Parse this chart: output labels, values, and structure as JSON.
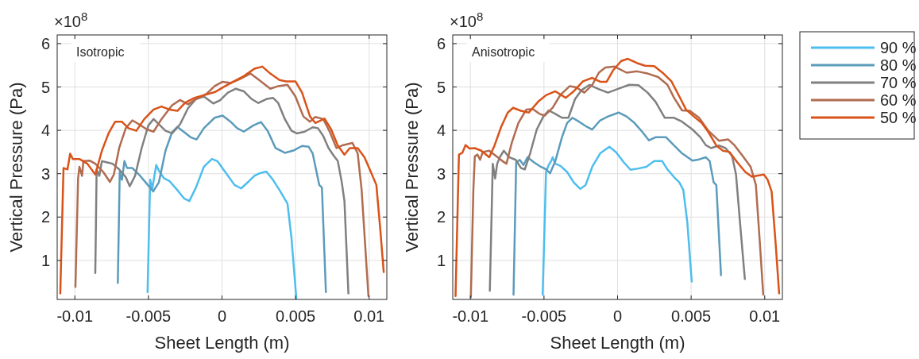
{
  "chart_data": [
    {
      "type": "line",
      "xlabel": "Sheet Length (m)",
      "ylabel": "Vertical Pressure (Pa)",
      "annotations": [
        "×10$^{8}$",
        "Isotropic"
      ],
      "xlim": [
        -0.0112,
        0.0112
      ],
      "ylim": [
        0.1,
        6.2
      ],
      "xticks": [
        -0.01,
        -0.005,
        0,
        0.005,
        0.01
      ],
      "yticks": [
        1,
        2,
        3,
        4,
        5,
        6
      ],
      "grid": true,
      "legend": false,
      "series": [
        {
          "color": "#4dbeee",
          "x": [
            -0.00506,
            -0.00488,
            -0.00474,
            -0.00447,
            -0.00429,
            -0.00393,
            -0.00357,
            -0.00303,
            -0.00258,
            -0.00222,
            -0.00177,
            -0.00123,
            -0.00068,
            -0.00032,
            0.00022,
            0.00085,
            0.0013,
            0.00184,
            0.0022,
            0.00256,
            0.00301,
            0.00346,
            0.00391,
            0.00445,
            0.00472,
            0.00505
          ],
          "values": [
            0.27,
            2.86,
            2.65,
            3.2,
            3.07,
            2.89,
            2.83,
            2.62,
            2.43,
            2.37,
            2.68,
            3.16,
            3.34,
            3.29,
            3.04,
            2.74,
            2.66,
            2.83,
            2.95,
            3.01,
            3.05,
            2.86,
            2.62,
            2.31,
            1.52,
            0.12
          ]
        },
        {
          "color": "#5b9bbb",
          "x": [
            -0.00708,
            -0.00695,
            -0.0068,
            -0.00663,
            -0.00645,
            -0.00609,
            -0.00564,
            -0.00519,
            -0.00468,
            -0.00429,
            -0.00384,
            -0.00339,
            -0.00303,
            -0.00258,
            -0.00213,
            -0.00173,
            -0.00123,
            -0.0005,
            4e-05,
            0.00058,
            0.00103,
            0.00148,
            0.00211,
            0.00265,
            0.0031,
            0.00364,
            0.00427,
            0.0049,
            0.00544,
            0.00589,
            0.00616,
            0.00661,
            0.00679,
            0.00706
          ],
          "values": [
            0.48,
            3.04,
            2.86,
            3.29,
            3.13,
            3.13,
            2.98,
            2.8,
            2.59,
            2.8,
            3.53,
            3.96,
            4.08,
            3.96,
            3.84,
            3.79,
            4.05,
            4.29,
            4.34,
            4.2,
            4.05,
            3.97,
            4.11,
            4.19,
            3.99,
            3.59,
            3.48,
            3.54,
            3.64,
            3.62,
            3.47,
            2.74,
            2.68,
            0.27
          ]
        },
        {
          "color": "#808080",
          "x": [
            -0.00861,
            -0.00852,
            -0.00834,
            -0.00816,
            -0.0078,
            -0.00744,
            -0.00699,
            -0.00654,
            -0.00627,
            -0.00591,
            -0.00546,
            -0.00501,
            -0.00465,
            -0.00429,
            -0.00384,
            -0.00339,
            -0.00285,
            -0.00231,
            -0.00177,
            -0.00123,
            -0.00059,
            -0.00014,
            0.0004,
            0.00094,
            0.00148,
            0.00202,
            0.00247,
            0.00301,
            0.00346,
            0.00382,
            0.00427,
            0.00472,
            0.00508,
            0.00562,
            0.00616,
            0.00652,
            0.00688,
            0.00724,
            0.0076,
            0.00787,
            0.00814,
            0.00832,
            0.00859
          ],
          "values": [
            0.71,
            3.1,
            2.95,
            3.29,
            3.26,
            3.23,
            3.1,
            2.92,
            2.71,
            2.95,
            3.59,
            4.11,
            4.26,
            4.14,
            3.99,
            3.93,
            4.14,
            4.51,
            4.72,
            4.78,
            4.62,
            4.69,
            4.87,
            4.96,
            4.9,
            4.72,
            4.63,
            4.72,
            4.75,
            4.63,
            4.26,
            3.99,
            3.93,
            3.97,
            4.07,
            4.05,
            3.87,
            3.59,
            3.41,
            3.29,
            2.8,
            2.37,
            0.24
          ]
        },
        {
          "color": "#b06c50",
          "x": [
            -0.00996,
            -0.00978,
            -0.00969,
            -0.00951,
            -0.00942,
            -0.00897,
            -0.00861,
            -0.00807,
            -0.00762,
            -0.00735,
            -0.00699,
            -0.00654,
            -0.00609,
            -0.00564,
            -0.0051,
            -0.00465,
            -0.00411,
            -0.00339,
            -0.00285,
            -0.00231,
            -0.00177,
            -0.00105,
            -0.0005,
            4e-05,
            0.00058,
            0.00121,
            0.00193,
            0.00256,
            0.00328,
            0.00382,
            0.00445,
            0.00499,
            0.00553,
            0.00598,
            0.00634,
            0.00688,
            0.00733,
            0.00778,
            0.00823,
            0.00886,
            0.00922,
            0.00949,
            0.00995
          ],
          "values": [
            0.39,
            2.89,
            3.16,
            2.95,
            3.29,
            3.3,
            3.23,
            3.04,
            2.81,
            2.98,
            3.59,
            4.05,
            4.23,
            4.14,
            4.02,
            3.97,
            4.26,
            4.58,
            4.7,
            4.6,
            4.72,
            4.84,
            5.02,
            5.12,
            5.09,
            5.18,
            5.31,
            5.15,
            4.96,
            5.02,
            5.05,
            4.78,
            4.32,
            4.2,
            4.31,
            4.26,
            3.96,
            3.59,
            3.66,
            3.71,
            3.47,
            2.62,
            0.18
          ]
        },
        {
          "color": "#d95319",
          "x": [
            -0.01099,
            -0.01077,
            -0.0105,
            -0.01032,
            -0.01014,
            -0.00969,
            -0.00915,
            -0.00861,
            -0.00816,
            -0.00771,
            -0.00726,
            -0.00681,
            -0.00636,
            -0.00582,
            -0.00528,
            -0.00465,
            -0.00411,
            -0.00357,
            -0.00303,
            -0.00249,
            -0.00186,
            -0.00123,
            -0.0005,
            0.00022,
            0.00076,
            0.00148,
            0.0022,
            0.00274,
            0.00328,
            0.00391,
            0.00436,
            0.00499,
            0.00544,
            0.00598,
            0.00634,
            0.00697,
            0.00742,
            0.00787,
            0.00832,
            0.00868,
            0.00922,
            0.00968,
            0.01004,
            0.01049,
            0.01076,
            0.01099
          ],
          "values": [
            0.24,
            3.13,
            3.1,
            3.46,
            3.34,
            3.34,
            3.23,
            2.98,
            3.53,
            3.93,
            4.2,
            4.2,
            4.05,
            3.99,
            4.26,
            4.48,
            4.55,
            4.48,
            4.45,
            4.64,
            4.75,
            4.81,
            4.88,
            5.02,
            5.12,
            5.25,
            5.42,
            5.47,
            5.31,
            5.16,
            5.13,
            5.13,
            4.87,
            4.32,
            4.17,
            4.27,
            4.02,
            3.65,
            3.44,
            3.59,
            3.59,
            3.38,
            3.1,
            2.74,
            1.7,
            0.73
          ]
        }
      ]
    },
    {
      "type": "line",
      "xlabel": "Sheet Length (m)",
      "ylabel": "Vertical Pressure (Pa)",
      "annotations": [
        "×10$^{8}$",
        "Anisotropic"
      ],
      "xlim": [
        -0.0112,
        0.0112
      ],
      "ylim": [
        0.1,
        6.2
      ],
      "xticks": [
        -0.01,
        -0.005,
        0,
        0.005,
        0.01
      ],
      "yticks": [
        1,
        2,
        3,
        4,
        5,
        6
      ],
      "grid": true,
      "legend": "right",
      "series": [
        {
          "name": "90 %",
          "color": "#4dbeee",
          "x": [
            -0.00509,
            -0.00486,
            -0.00468,
            -0.0045,
            -0.00441,
            -0.00423,
            -0.00388,
            -0.00343,
            -0.00298,
            -0.00253,
            -0.00217,
            -0.00172,
            -0.00118,
            -0.00056,
            -0.00011,
            0.00043,
            0.00088,
            0.00142,
            0.00196,
            0.00249,
            0.00303,
            0.00339,
            0.00384,
            0.0042,
            0.00447,
            0.00474,
            0.00504
          ],
          "values": [
            0.21,
            3.04,
            3.2,
            3.3,
            3.38,
            3.23,
            3.18,
            3.04,
            2.8,
            2.65,
            2.74,
            3.16,
            3.47,
            3.62,
            3.5,
            3.26,
            3.09,
            3.12,
            3.16,
            3.29,
            3.29,
            3.1,
            2.92,
            2.8,
            2.62,
            1.88,
            0.51
          ]
        },
        {
          "name": "80 %",
          "color": "#5b9bbb",
          "x": [
            -0.00707,
            -0.00689,
            -0.00665,
            -0.00639,
            -0.00612,
            -0.00567,
            -0.00522,
            -0.00486,
            -0.00459,
            -0.00423,
            -0.00378,
            -0.00343,
            -0.00307,
            -0.00262,
            -0.00208,
            -0.00172,
            -0.00118,
            -0.00065,
            7e-05,
            0.00061,
            0.00115,
            0.00169,
            0.00213,
            0.00258,
            0.0033,
            0.00384,
            0.00438,
            0.00509,
            0.00554,
            0.00599,
            0.00626,
            0.00653,
            0.00671,
            0.00703
          ],
          "values": [
            0.21,
            3.26,
            3.32,
            3.2,
            3.38,
            3.26,
            3.16,
            3.1,
            3.01,
            3.29,
            3.84,
            4.17,
            4.29,
            4.2,
            4.08,
            4.02,
            4.23,
            4.32,
            4.41,
            4.32,
            4.17,
            3.96,
            3.77,
            3.84,
            3.84,
            3.65,
            3.47,
            3.3,
            3.33,
            3.38,
            3.29,
            2.8,
            2.74,
            0.66
          ]
        },
        {
          "name": "70 %",
          "color": "#808080",
          "x": [
            -0.00868,
            -0.00848,
            -0.00832,
            -0.00818,
            -0.008,
            -0.00773,
            -0.00737,
            -0.00692,
            -0.00656,
            -0.0063,
            -0.00594,
            -0.00549,
            -0.00504,
            -0.00468,
            -0.00423,
            -0.00378,
            -0.00334,
            -0.00289,
            -0.00244,
            -0.0019,
            -0.00136,
            -0.00065,
            7e-05,
            0.00079,
            0.00142,
            0.00204,
            0.00258,
            0.00321,
            0.00384,
            0.00438,
            0.00509,
            0.00563,
            0.00599,
            0.00635,
            0.00689,
            0.00734,
            0.00778,
            0.00805,
            0.00832,
            0.00865
          ],
          "values": [
            0.3,
            3.23,
            2.89,
            3.23,
            3.38,
            3.53,
            3.38,
            3.32,
            3.13,
            3.1,
            3.47,
            4.02,
            4.32,
            4.46,
            4.38,
            4.29,
            4.29,
            4.72,
            4.93,
            5.05,
            4.96,
            4.87,
            4.96,
            5.05,
            5.04,
            4.87,
            4.66,
            4.29,
            4.29,
            4.2,
            4.02,
            3.84,
            3.66,
            3.59,
            3.65,
            3.59,
            3.41,
            2.98,
            1.88,
            0.57
          ]
        },
        {
          "name": "60 %",
          "color": "#b06c50",
          "x": [
            -0.00997,
            -0.0098,
            -0.0097,
            -0.00952,
            -0.00934,
            -0.00916,
            -0.00872,
            -0.00827,
            -0.00782,
            -0.00755,
            -0.00719,
            -0.00674,
            -0.0062,
            -0.00576,
            -0.00531,
            -0.00495,
            -0.00441,
            -0.00388,
            -0.00325,
            -0.0028,
            -0.00226,
            -0.00172,
            -0.00127,
            -0.00083,
            -0.0002,
            0.00061,
            0.00133,
            0.00204,
            0.00276,
            0.00339,
            0.00384,
            0.00438,
            0.00491,
            0.00554,
            0.00617,
            0.00689,
            0.00752,
            0.00796,
            0.0085,
            0.00904,
            0.0094,
            0.00967,
            0.0099
          ],
          "values": [
            0.15,
            2.62,
            3.4,
            3.44,
            3.32,
            3.5,
            3.53,
            3.41,
            3.29,
            3.23,
            3.71,
            4.17,
            4.48,
            4.49,
            4.38,
            4.34,
            4.52,
            4.82,
            5.02,
            4.99,
            4.87,
            5.05,
            5.33,
            5.45,
            5.47,
            5.33,
            5.36,
            5.31,
            5.23,
            5.05,
            4.75,
            4.46,
            4.45,
            4.29,
            3.99,
            3.76,
            3.79,
            3.65,
            3.41,
            3.16,
            2.74,
            1.4,
            0.21
          ]
        },
        {
          "name": "50 %",
          "color": "#d95319",
          "x": [
            -0.01101,
            -0.01078,
            -0.01055,
            -0.01033,
            -0.01006,
            -0.0097,
            -0.00926,
            -0.00872,
            -0.00836,
            -0.00791,
            -0.00746,
            -0.0071,
            -0.00657,
            -0.00603,
            -0.0054,
            -0.00486,
            -0.00423,
            -0.00352,
            -0.00298,
            -0.00235,
            -0.00172,
            -0.00118,
            -0.00074,
            -0.00029,
            0.00025,
            0.0007,
            0.00133,
            0.00187,
            0.00249,
            0.00312,
            0.00366,
            0.0042,
            0.00465,
            0.00518,
            0.00572,
            0.00617,
            0.00671,
            0.00716,
            0.00761,
            0.00814,
            0.00868,
            0.00913,
            0.0094,
            0.00994,
            0.0102,
            0.01047,
            0.01074,
            0.01098
          ],
          "values": [
            0.18,
            3.44,
            3.48,
            3.66,
            3.58,
            3.59,
            3.53,
            3.38,
            3.65,
            4.08,
            4.41,
            4.52,
            4.45,
            4.41,
            4.66,
            4.81,
            4.9,
            4.75,
            4.9,
            5.13,
            5.21,
            5.12,
            5.12,
            5.39,
            5.6,
            5.65,
            5.55,
            5.49,
            5.48,
            5.31,
            5.13,
            4.78,
            4.48,
            4.32,
            4.17,
            3.96,
            3.65,
            3.53,
            3.5,
            3.26,
            3.04,
            2.93,
            2.95,
            2.98,
            2.86,
            2.59,
            1.4,
            0.24
          ]
        }
      ]
    }
  ]
}
